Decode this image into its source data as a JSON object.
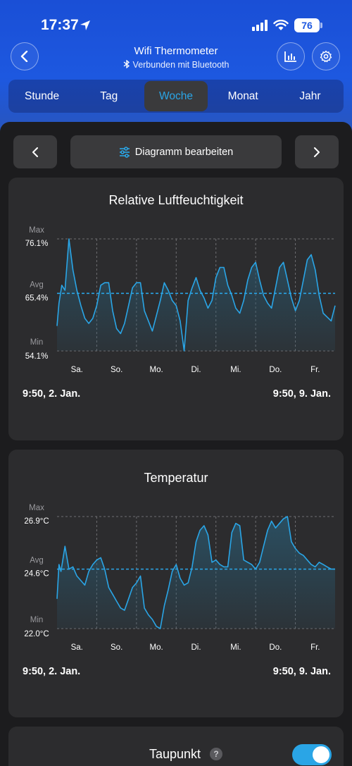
{
  "status": {
    "time": "17:37",
    "battery": "76"
  },
  "nav": {
    "title": "Wifi Thermometer",
    "subtitle": "Verbunden mit Bluetooth"
  },
  "tabs": [
    {
      "label": "Stunde",
      "active": false
    },
    {
      "label": "Tag",
      "active": false
    },
    {
      "label": "Woche",
      "active": true
    },
    {
      "label": "Monat",
      "active": false
    },
    {
      "label": "Jahr",
      "active": false
    }
  ],
  "toolbar": {
    "edit_label": "Diagramm bearbeiten"
  },
  "humidity": {
    "title": "Relative Luftfeuchtigkeit",
    "max_label": "Max",
    "max_value": "76.1%",
    "avg_label": "Avg",
    "avg_value": "65.4%",
    "min_label": "Min",
    "min_value": "54.1%",
    "range_start": "9:50,  2. Jan.",
    "range_end": "9:50,  9. Jan."
  },
  "temperature": {
    "title": "Temperatur",
    "max_label": "Max",
    "max_value": "26.9°C",
    "avg_label": "Avg",
    "avg_value": "24.6°C",
    "min_label": "Min",
    "min_value": "22.0°C",
    "range_start": "9:50,  2. Jan.",
    "range_end": "9:50,  9. Jan."
  },
  "dewpoint": {
    "title": "Taupunkt",
    "toggle_on": true
  },
  "colors": {
    "accent": "#2aa5e6",
    "card": "#2c2c2e",
    "background": "#1c1c1e",
    "header": "#1d58e0"
  },
  "chart_data": [
    {
      "type": "area",
      "title": "Relative Luftfeuchtigkeit",
      "categories": [
        "Sa.",
        "So.",
        "Mo.",
        "Di.",
        "Mi.",
        "Do.",
        "Fr."
      ],
      "ylim": [
        54.1,
        76.1
      ],
      "avg": 65.4,
      "unit": "%",
      "series": [
        {
          "x": [
            0,
            0.05,
            0.12,
            0.2,
            0.3,
            0.4,
            0.5,
            0.6,
            0.7,
            0.8,
            0.9,
            1.0,
            1.1,
            1.2,
            1.3,
            1.4,
            1.5,
            1.6,
            1.7,
            1.8,
            1.9,
            2.0,
            2.1,
            2.2,
            2.3,
            2.4,
            2.5,
            2.6,
            2.7,
            2.8,
            2.9,
            3.0,
            3.1,
            3.2,
            3.3,
            3.4,
            3.5,
            3.6,
            3.7,
            3.8,
            3.9,
            4.0,
            4.1,
            4.2,
            4.3,
            4.4,
            4.5,
            4.6,
            4.7,
            4.8,
            4.9,
            5.0,
            5.1,
            5.2,
            5.3,
            5.4,
            5.5,
            5.6,
            5.7,
            5.8,
            5.9,
            6.0,
            6.1,
            6.2,
            6.3,
            6.4,
            6.5,
            6.6,
            6.7,
            6.9,
            7.0
          ],
          "values": [
            59.0,
            63.5,
            67.0,
            66.0,
            76.1,
            70.0,
            66.0,
            63.0,
            60.5,
            59.5,
            60.5,
            63.0,
            67.0,
            67.5,
            67.5,
            62.0,
            58.5,
            57.5,
            59.5,
            63.0,
            66.5,
            67.5,
            67.5,
            62.0,
            60.0,
            58.0,
            61.0,
            64.0,
            67.5,
            66.0,
            64.0,
            63.0,
            60.0,
            54.1,
            64.0,
            66.5,
            68.5,
            66.0,
            64.5,
            62.5,
            64.0,
            68.5,
            70.5,
            70.5,
            67.0,
            65.0,
            62.5,
            61.5,
            64.0,
            68.0,
            70.5,
            71.5,
            68.0,
            65.0,
            63.5,
            62.5,
            66.5,
            70.5,
            71.5,
            68.0,
            64.5,
            62.0,
            64.0,
            68.0,
            72.0,
            73.0,
            70.0,
            65.0,
            61.5,
            60.0,
            63.0
          ]
        }
      ]
    },
    {
      "type": "area",
      "title": "Temperatur",
      "categories": [
        "Sa.",
        "So.",
        "Mo.",
        "Di.",
        "Mi.",
        "Do.",
        "Fr."
      ],
      "ylim": [
        22.0,
        26.9
      ],
      "avg": 24.6,
      "unit": "°C",
      "series": [
        {
          "x": [
            0,
            0.05,
            0.1,
            0.2,
            0.3,
            0.4,
            0.5,
            0.6,
            0.7,
            0.8,
            0.9,
            1.0,
            1.1,
            1.2,
            1.3,
            1.4,
            1.5,
            1.6,
            1.7,
            1.8,
            1.9,
            2.0,
            2.1,
            2.2,
            2.3,
            2.4,
            2.5,
            2.6,
            2.7,
            2.8,
            2.9,
            3.0,
            3.1,
            3.2,
            3.3,
            3.4,
            3.5,
            3.6,
            3.7,
            3.8,
            3.9,
            4.0,
            4.1,
            4.2,
            4.3,
            4.4,
            4.5,
            4.6,
            4.7,
            4.8,
            4.9,
            5.0,
            5.1,
            5.2,
            5.3,
            5.4,
            5.5,
            5.6,
            5.7,
            5.8,
            5.9,
            6.0,
            6.1,
            6.2,
            6.3,
            6.4,
            6.5,
            6.6,
            6.7,
            6.8,
            6.9,
            7.0
          ],
          "values": [
            23.3,
            24.8,
            24.5,
            25.6,
            24.6,
            24.7,
            24.3,
            24.1,
            23.9,
            24.5,
            24.8,
            25.0,
            25.1,
            24.6,
            23.8,
            23.5,
            23.2,
            22.9,
            22.8,
            23.3,
            23.8,
            24.0,
            24.3,
            22.9,
            22.6,
            22.4,
            22.1,
            22.0,
            23.0,
            23.7,
            24.5,
            24.8,
            24.2,
            23.9,
            24.0,
            24.7,
            25.8,
            26.3,
            26.5,
            26.1,
            24.9,
            25.0,
            24.8,
            24.7,
            24.7,
            26.2,
            26.6,
            26.5,
            25.0,
            24.9,
            24.8,
            24.6,
            24.9,
            25.6,
            26.3,
            26.7,
            26.4,
            26.6,
            26.8,
            26.9,
            25.8,
            25.5,
            25.3,
            25.2,
            25.0,
            24.8,
            24.7,
            24.9,
            24.8,
            24.7,
            24.6,
            24.6
          ]
        }
      ]
    }
  ]
}
